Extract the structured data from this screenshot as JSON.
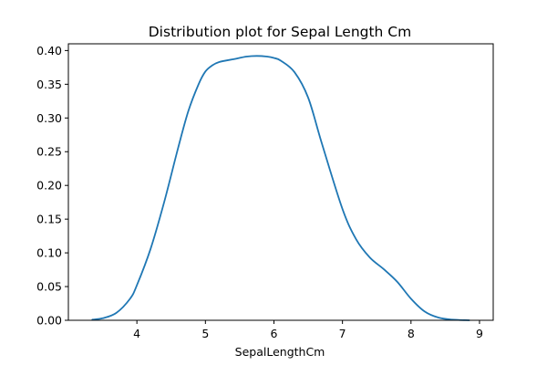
{
  "chart_data": {
    "type": "line",
    "title": "Distribution plot for Sepal Length Cm",
    "xlabel": "SepalLengthCm",
    "ylabel": "",
    "xlim": [
      3.0,
      9.2
    ],
    "ylim": [
      0.0,
      0.41
    ],
    "grid": false,
    "x_ticks": [
      4,
      5,
      6,
      7,
      8,
      9
    ],
    "y_ticks": [
      0.0,
      0.05,
      0.1,
      0.15,
      0.2,
      0.25,
      0.3,
      0.35,
      0.4
    ],
    "y_tick_labels": [
      "0.00",
      "0.05",
      "0.10",
      "0.15",
      "0.20",
      "0.25",
      "0.30",
      "0.35",
      "0.40"
    ],
    "x_tick_labels": [
      "4",
      "5",
      "6",
      "7",
      "8",
      "9"
    ],
    "series": [
      {
        "color": "#1f77b4",
        "x": [
          3.35,
          3.5,
          3.7,
          3.9,
          4.0,
          4.2,
          4.4,
          4.6,
          4.75,
          4.9,
          5.0,
          5.1,
          5.2,
          5.4,
          5.6,
          5.75,
          5.9,
          6.0,
          6.1,
          6.3,
          6.5,
          6.7,
          7.0,
          7.2,
          7.4,
          7.6,
          7.8,
          8.0,
          8.2,
          8.4,
          8.6,
          8.85
        ],
        "y": [
          0.001,
          0.003,
          0.011,
          0.032,
          0.052,
          0.106,
          0.176,
          0.255,
          0.31,
          0.35,
          0.369,
          0.378,
          0.383,
          0.387,
          0.391,
          0.392,
          0.391,
          0.389,
          0.385,
          0.368,
          0.33,
          0.262,
          0.165,
          0.12,
          0.093,
          0.076,
          0.057,
          0.032,
          0.013,
          0.004,
          0.001,
          0.0
        ]
      }
    ]
  }
}
